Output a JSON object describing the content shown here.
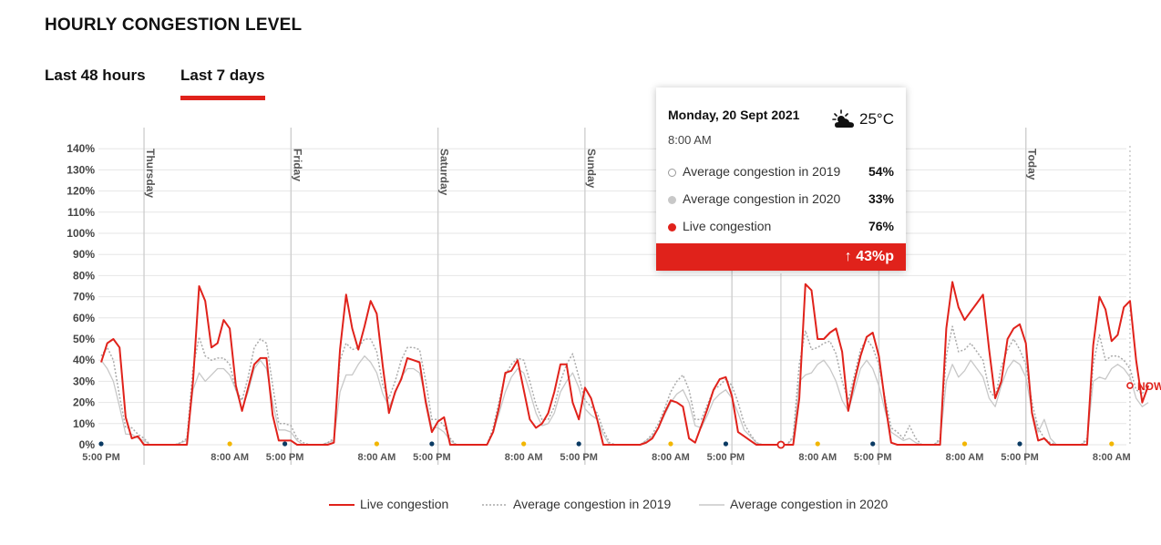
{
  "header": {
    "title": "HOURLY CONGESTION LEVEL"
  },
  "tabs": [
    {
      "label": "Last 48 hours",
      "active": false
    },
    {
      "label": "Last 7 days",
      "active": true
    }
  ],
  "colors": {
    "live": "#e0221b",
    "avg2019": "#aaaaaa",
    "avg2020": "#c8c8c8",
    "accent": "#e0221b",
    "grid": "#e6e6e6",
    "day_line": "#cfcfcf",
    "sun_dot": "#f2b600",
    "night_dot": "#0a3a63"
  },
  "chart_data": {
    "type": "line",
    "y_axis": {
      "ticks": [
        "0%",
        "10%",
        "20%",
        "30%",
        "40%",
        "50%",
        "60%",
        "70%",
        "80%",
        "90%",
        "100%",
        "110%",
        "120%",
        "130%",
        "140%"
      ],
      "min": 0,
      "max": 140
    },
    "x_tick_labels": [
      "5:00 PM",
      "8:00 AM",
      "5:00 PM",
      "8:00 AM",
      "5:00 PM",
      "8:00 AM",
      "5:00 PM",
      "8:00 AM",
      "5:00 PM",
      "8:00 AM",
      "5:00 PM",
      "8:00 AM",
      "5:00 PM",
      "8:00 AM"
    ],
    "day_labels": [
      "Thursday",
      "Friday",
      "Saturday",
      "Sunday",
      "Today"
    ],
    "now_label": "NOW",
    "grid": true,
    "legend_position": "bottom",
    "series": [
      {
        "name": "Live congestion",
        "style": "solid",
        "values": [
          39,
          48,
          50,
          46,
          13,
          3,
          4,
          0,
          0,
          0,
          0,
          0,
          0,
          0,
          0,
          30,
          75,
          68,
          46,
          48,
          59,
          55,
          28,
          16,
          27,
          38,
          41,
          41,
          14,
          2,
          2,
          2,
          0,
          0,
          0,
          0,
          0,
          0,
          1,
          45,
          71,
          55,
          45,
          56,
          68,
          62,
          37,
          15,
          25,
          31,
          41,
          40,
          39,
          20,
          6,
          11,
          13,
          0,
          0,
          0,
          0,
          0,
          0,
          0,
          6,
          18,
          34,
          35,
          40,
          26,
          12,
          8,
          10,
          15,
          25,
          38,
          38,
          20,
          12,
          27,
          22,
          12,
          0,
          0,
          0,
          0,
          0,
          0,
          0,
          1,
          3,
          8,
          15,
          21,
          20,
          18,
          3,
          1,
          9,
          17,
          26,
          31,
          32,
          23,
          6,
          4,
          2,
          0,
          0,
          0,
          0,
          0,
          0,
          0,
          22,
          76,
          73,
          50,
          50,
          53,
          55,
          44,
          16,
          30,
          42,
          51,
          53,
          42,
          20,
          1,
          0,
          0,
          0,
          0,
          0,
          0,
          0,
          0,
          55,
          77,
          65,
          59,
          63,
          67,
          71,
          45,
          22,
          30,
          50,
          55,
          57,
          48,
          15,
          2,
          3,
          0,
          0,
          0,
          0,
          0,
          0,
          0,
          47,
          70,
          64,
          49,
          52,
          65,
          68,
          40,
          20,
          28
        ]
      },
      {
        "name": "Average congestion in 2019",
        "style": "dotted",
        "values": [
          42,
          46,
          40,
          23,
          8,
          8,
          5,
          3,
          0,
          0,
          0,
          0,
          0,
          1,
          3,
          36,
          51,
          42,
          40,
          41,
          41,
          38,
          26,
          21,
          32,
          46,
          50,
          48,
          28,
          10,
          10,
          9,
          3,
          1,
          0,
          0,
          0,
          1,
          3,
          40,
          48,
          45,
          46,
          50,
          50,
          44,
          28,
          22,
          30,
          40,
          46,
          46,
          45,
          30,
          12,
          12,
          9,
          3,
          0,
          0,
          0,
          0,
          0,
          0,
          8,
          21,
          33,
          38,
          41,
          40,
          30,
          19,
          12,
          12,
          18,
          30,
          38,
          43,
          32,
          21,
          18,
          15,
          7,
          1,
          0,
          0,
          0,
          0,
          0,
          2,
          5,
          10,
          17,
          25,
          30,
          33,
          26,
          12,
          12,
          19,
          26,
          28,
          31,
          28,
          20,
          10,
          5,
          1,
          0,
          0,
          0,
          0,
          0,
          4,
          38,
          54,
          45,
          46,
          48,
          49,
          43,
          30,
          21,
          33,
          45,
          50,
          46,
          38,
          22,
          8,
          6,
          3,
          9,
          3,
          0,
          0,
          0,
          3,
          42,
          56,
          44,
          45,
          48,
          44,
          40,
          26,
          22,
          37,
          45,
          50,
          45,
          38,
          20,
          8,
          3,
          1,
          0,
          0,
          0,
          0,
          0,
          3,
          38,
          52,
          40,
          42,
          42,
          40,
          36,
          26,
          24,
          30
        ]
      },
      {
        "name": "Average congestion in 2020",
        "style": "solid-light",
        "values": [
          40,
          36,
          30,
          18,
          5,
          5,
          3,
          2,
          0,
          0,
          0,
          0,
          0,
          1,
          2,
          26,
          34,
          30,
          33,
          36,
          36,
          33,
          26,
          17,
          25,
          36,
          40,
          36,
          20,
          7,
          7,
          6,
          2,
          0,
          0,
          0,
          0,
          1,
          2,
          25,
          33,
          33,
          38,
          42,
          39,
          34,
          24,
          18,
          24,
          32,
          36,
          36,
          34,
          22,
          8,
          8,
          6,
          2,
          0,
          0,
          0,
          0,
          0,
          0,
          6,
          15,
          25,
          32,
          36,
          34,
          25,
          15,
          9,
          10,
          15,
          25,
          30,
          34,
          27,
          17,
          14,
          12,
          5,
          0,
          0,
          0,
          0,
          0,
          0,
          2,
          4,
          8,
          14,
          20,
          24,
          26,
          20,
          9,
          8,
          14,
          21,
          24,
          26,
          22,
          15,
          7,
          4,
          1,
          0,
          0,
          0,
          0,
          0,
          3,
          30,
          33,
          34,
          38,
          40,
          36,
          30,
          21,
          16,
          26,
          36,
          40,
          36,
          28,
          16,
          6,
          4,
          2,
          3,
          1,
          0,
          0,
          0,
          2,
          30,
          38,
          32,
          35,
          40,
          36,
          32,
          22,
          18,
          28,
          36,
          40,
          38,
          32,
          16,
          6,
          12,
          3,
          0,
          0,
          0,
          0,
          0,
          2,
          30,
          32,
          31,
          36,
          38,
          36,
          32,
          22,
          18,
          20
        ]
      }
    ]
  },
  "tooltip": {
    "date": "Monday, 20 Sept 2021",
    "time": "8:00 AM",
    "temperature": "25°C",
    "weather_icon": "partly-cloudy-sun-icon",
    "rows": [
      {
        "label": "Average congestion in 2019",
        "value": "54%"
      },
      {
        "label": "Average congestion in 2020",
        "value": "33%"
      },
      {
        "label": "Live congestion",
        "value": "76%"
      }
    ],
    "change": "↑ 43%p"
  },
  "legend": [
    {
      "label": "Live congestion"
    },
    {
      "label": "Average congestion in 2019"
    },
    {
      "label": "Average congestion in 2020"
    }
  ]
}
